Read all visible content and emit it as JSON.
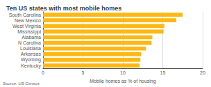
{
  "chart_data": {
    "type": "bar",
    "orientation": "horizontal",
    "title": "Ten US states with most mobile homes",
    "categories": [
      "South Carolina",
      "New Mexico",
      "West Virginia",
      "Mississippi",
      "Alabama",
      "N Carolina",
      "Louisiana",
      "Arkansas",
      "Wyoming",
      "Kentucky"
    ],
    "values": [
      17.5,
      16.7,
      15.2,
      15.1,
      13.7,
      13.6,
      12.9,
      12.3,
      12.2,
      12.1
    ],
    "color": "#FDB813",
    "xlabel": "Mobile homes as % of housing",
    "annotations": [
      "Source: US Census"
    ],
    "xlim": [
      0,
      20
    ],
    "xticks": [
      0,
      5,
      10,
      15,
      20
    ],
    "grid": true
  }
}
